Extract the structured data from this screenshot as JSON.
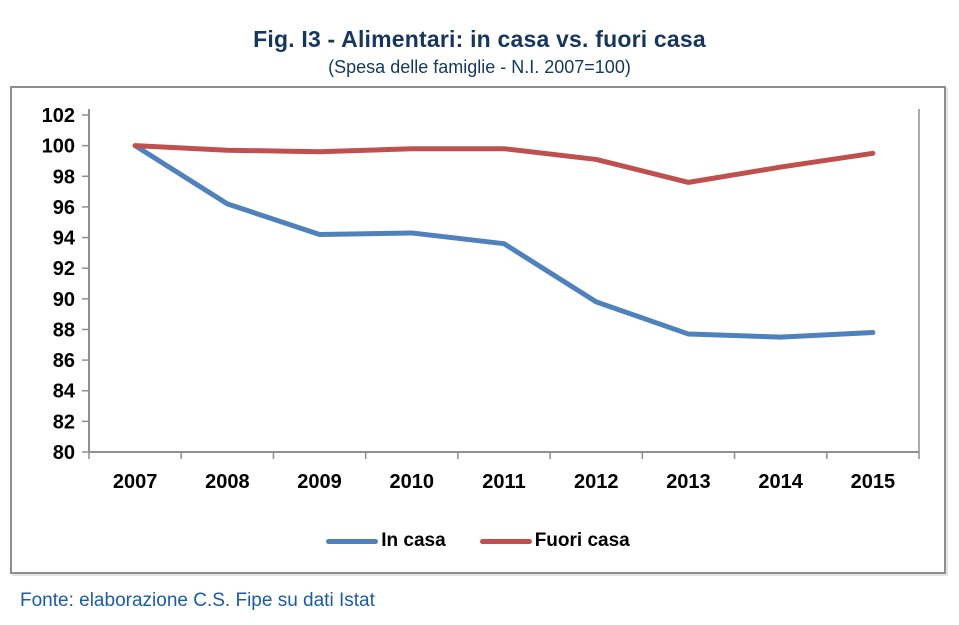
{
  "header": {
    "title": "Fig. I3 - Alimentari: in casa vs. fuori casa",
    "subtitle": "(Spesa delle famiglie - N.I. 2007=100)"
  },
  "footer": {
    "source": "Fonte: elaborazione C.S. Fipe su dati Istat"
  },
  "colors": {
    "title_text": "#17365D",
    "source_text": "#1C5BA8",
    "axis_line": "#8F8F8F",
    "axis_label": "#000000",
    "in_casa_line": "#4F81BD",
    "fuori_casa_line": "#C0504D",
    "chart_border": "#8E8E8E"
  },
  "chart_data": {
    "type": "line",
    "title": "Fig. I3 - Alimentari: in casa vs. fuori casa",
    "subtitle": "(Spesa delle famiglie - N.I. 2007=100)",
    "categories": [
      "2007",
      "2008",
      "2009",
      "2010",
      "2011",
      "2012",
      "2013",
      "2014",
      "2015"
    ],
    "series": [
      {
        "name": "In casa",
        "color": "#4F81BD",
        "values": [
          100,
          96.2,
          94.2,
          94.3,
          93.6,
          89.8,
          87.7,
          87.5,
          87.8
        ]
      },
      {
        "name": "Fuori casa",
        "color": "#C0504D",
        "values": [
          100,
          99.7,
          99.6,
          99.8,
          99.8,
          99.1,
          97.6,
          98.6,
          99.5
        ]
      }
    ],
    "xlabel": "",
    "ylabel": "",
    "ylim": [
      80,
      102
    ],
    "ytick_step": 2,
    "grid": false,
    "legend_position": "bottom"
  }
}
